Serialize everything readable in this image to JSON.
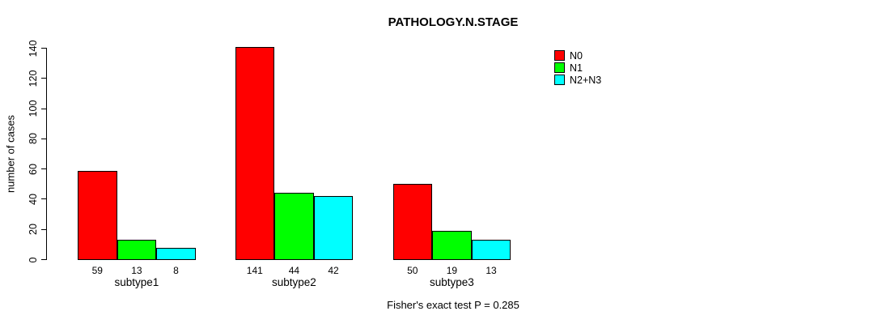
{
  "chart_data": {
    "type": "bar",
    "title": "PATHOLOGY.N.STAGE",
    "xlabel": "",
    "ylabel": "number of cases",
    "categories": [
      "subtype1",
      "subtype2",
      "subtype3"
    ],
    "series": [
      {
        "name": "N0",
        "color": "#ff0000",
        "values": [
          59,
          141,
          50
        ]
      },
      {
        "name": "N1",
        "color": "#00ff00",
        "values": [
          13,
          44,
          19
        ]
      },
      {
        "name": "N2+N3",
        "color": "#00ffff",
        "values": [
          8,
          42,
          13
        ]
      }
    ],
    "yticks": [
      0,
      20,
      40,
      60,
      80,
      100,
      120,
      140
    ],
    "ylim": [
      0,
      140
    ],
    "grid": false,
    "legend_position": "top-right",
    "bar_value_labels_shown": true,
    "annotation": "Fisher's exact test P = 0.285"
  },
  "colors": {
    "axis": "#000000",
    "background": "#ffffff",
    "bar_border": "#000000"
  }
}
